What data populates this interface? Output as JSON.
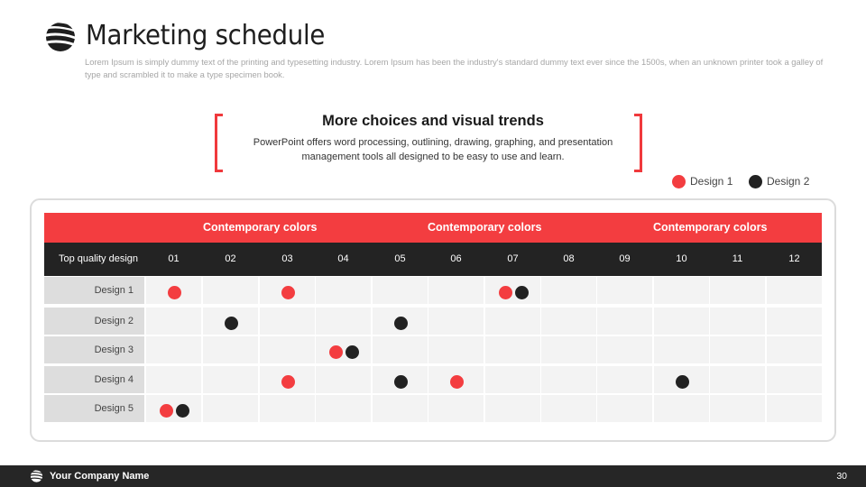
{
  "header": {
    "title": "Marketing schedule",
    "subtitle": "Lorem Ipsum is simply dummy text of the printing and typesetting industry. Lorem Ipsum has been the industry's standard dummy text ever since the 1500s, when an unknown printer took a galley of type and scrambled it to make a type specimen book."
  },
  "callout": {
    "title": "More choices and visual trends",
    "body": "PowerPoint offers word processing, outlining, drawing, graphing, and presentation management tools all designed to be easy to use and learn."
  },
  "legend": [
    {
      "label": "Design 1",
      "color": "#f33d40"
    },
    {
      "label": "Design 2",
      "color": "#222222"
    }
  ],
  "table": {
    "group_headers": [
      "Contemporary colors",
      "Contemporary colors",
      "Contemporary colors"
    ],
    "corner_label": "Top quality design",
    "columns": [
      "01",
      "02",
      "03",
      "04",
      "05",
      "06",
      "07",
      "08",
      "09",
      "10",
      "11",
      "12"
    ],
    "rows": [
      {
        "label": "Design 1",
        "marks": [
          {
            "col": 1,
            "design": 1
          },
          {
            "col": 3,
            "design": 1
          },
          {
            "col": 7,
            "design": 1
          },
          {
            "col": 7,
            "design": 2
          }
        ]
      },
      {
        "label": "Design 2",
        "marks": [
          {
            "col": 2,
            "design": 2
          },
          {
            "col": 5,
            "design": 2
          }
        ]
      },
      {
        "label": "Design 3",
        "marks": [
          {
            "col": 4,
            "design": 1
          },
          {
            "col": 4,
            "design": 2
          }
        ]
      },
      {
        "label": "Design 4",
        "marks": [
          {
            "col": 3,
            "design": 1
          },
          {
            "col": 5,
            "design": 2
          },
          {
            "col": 6,
            "design": 1
          },
          {
            "col": 10,
            "design": 2
          }
        ]
      },
      {
        "label": "Design 5",
        "marks": [
          {
            "col": 1,
            "design": 1
          },
          {
            "col": 1,
            "design": 2
          }
        ]
      }
    ]
  },
  "footer": {
    "company": "Your Company Name",
    "page_number": "30"
  },
  "colors": {
    "accent": "#f33d40",
    "dark": "#232323"
  },
  "icons": {
    "logo": "globe-stripes-icon"
  }
}
